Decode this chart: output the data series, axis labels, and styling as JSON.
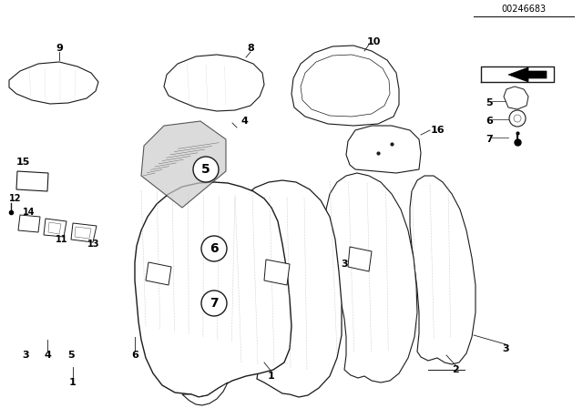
{
  "bg_color": "#ffffff",
  "diagram_number": "00246683",
  "line_color": "#1a1a1a",
  "dot_color": "#888888"
}
